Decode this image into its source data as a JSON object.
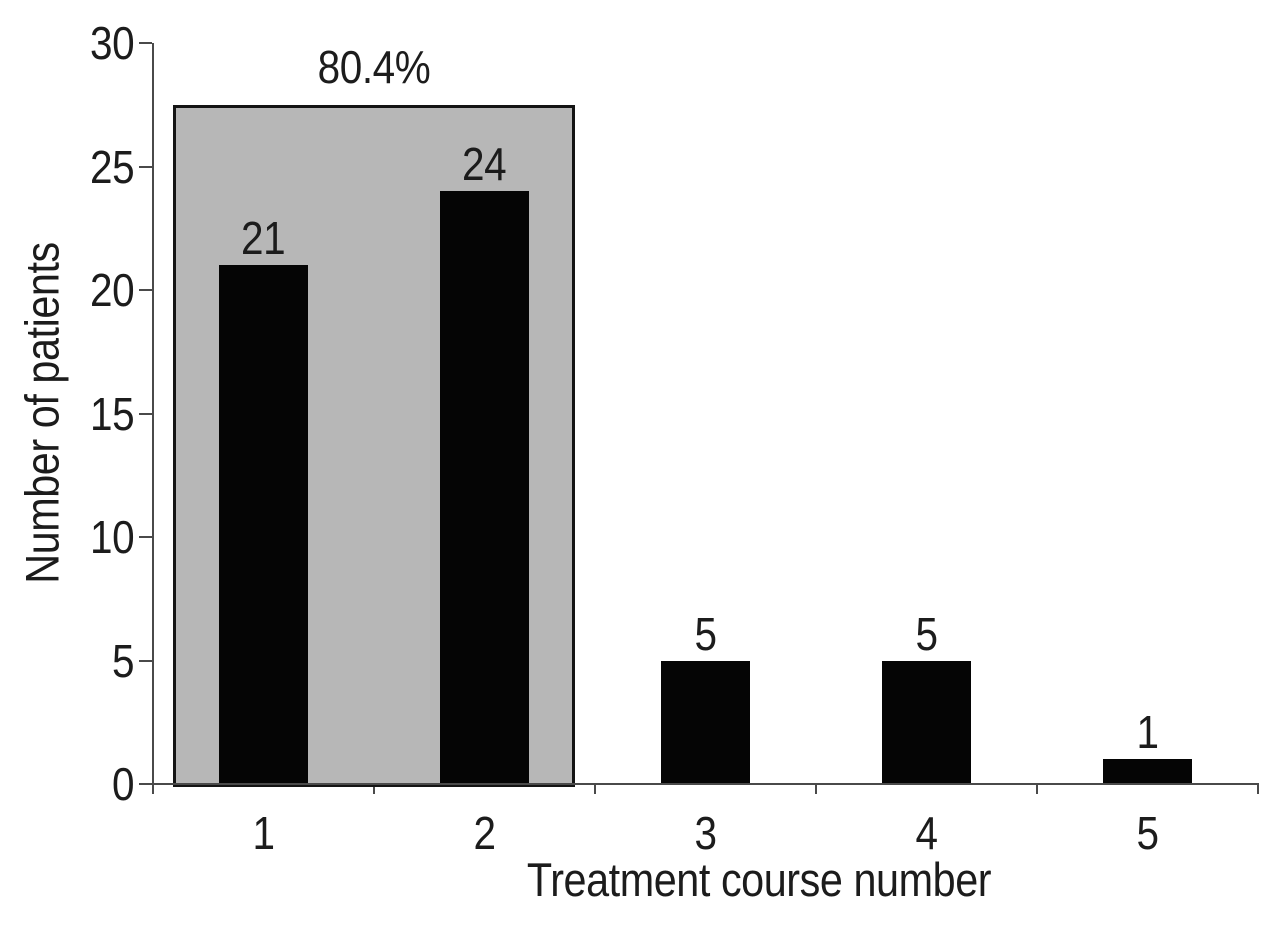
{
  "figure": {
    "background": "#ffffff"
  },
  "chart_data": {
    "type": "bar",
    "title": "",
    "xlabel": "Treatment course number",
    "ylabel": "Number of patients",
    "categories": [
      "1",
      "2",
      "3",
      "4",
      "5"
    ],
    "values": [
      21,
      24,
      5,
      5,
      1
    ],
    "bar_value_labels": [
      "21",
      "24",
      "5",
      "5",
      "1"
    ],
    "ylim": [
      0,
      30
    ],
    "yticks": [
      0,
      5,
      10,
      15,
      20,
      25,
      30
    ],
    "ytick_labels": [
      "0",
      "5",
      "10",
      "15",
      "20",
      "25",
      "30"
    ],
    "grid": false,
    "legend_position": "none",
    "bar_color": "#050505",
    "axis_color": "#4a4a4a",
    "text_color": "#1c1c1c",
    "annotation": {
      "label": "80.4%",
      "type": "highlight-box",
      "covers_categories": [
        "1",
        "2"
      ],
      "box_top_value": 27.5,
      "fill_color": "#b7b7b7",
      "border_color": "#141414"
    }
  }
}
